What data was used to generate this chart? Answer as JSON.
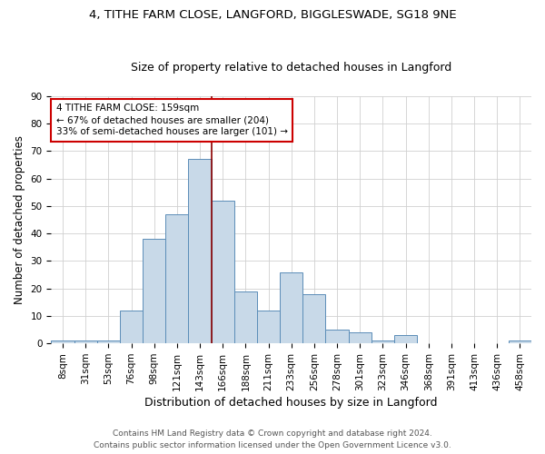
{
  "title1": "4, TITHE FARM CLOSE, LANGFORD, BIGGLESWADE, SG18 9NE",
  "title2": "Size of property relative to detached houses in Langford",
  "xlabel": "Distribution of detached houses by size in Langford",
  "ylabel": "Number of detached properties",
  "footnote": "Contains HM Land Registry data © Crown copyright and database right 2024.\nContains public sector information licensed under the Open Government Licence v3.0.",
  "bin_labels": [
    "8sqm",
    "31sqm",
    "53sqm",
    "76sqm",
    "98sqm",
    "121sqm",
    "143sqm",
    "166sqm",
    "188sqm",
    "211sqm",
    "233sqm",
    "256sqm",
    "278sqm",
    "301sqm",
    "323sqm",
    "346sqm",
    "368sqm",
    "391sqm",
    "413sqm",
    "436sqm",
    "458sqm"
  ],
  "bar_heights": [
    1,
    1,
    1,
    12,
    38,
    47,
    67,
    52,
    19,
    12,
    26,
    18,
    5,
    4,
    1,
    3,
    0,
    0,
    0,
    0,
    1
  ],
  "bar_color": "#c8d9e8",
  "bar_edge_color": "#5b8db8",
  "grid_color": "#d0d0d0",
  "vline_x": 6.5,
  "vline_color": "#8b0000",
  "annotation_text": "4 TITHE FARM CLOSE: 159sqm\n← 67% of detached houses are smaller (204)\n33% of semi-detached houses are larger (101) →",
  "annotation_box_color": "white",
  "annotation_box_edge_color": "#cc0000",
  "ylim": [
    0,
    90
  ],
  "yticks": [
    0,
    10,
    20,
    30,
    40,
    50,
    60,
    70,
    80,
    90
  ],
  "background_color": "white",
  "title1_fontsize": 9.5,
  "title2_fontsize": 9,
  "xlabel_fontsize": 9,
  "ylabel_fontsize": 8.5,
  "tick_fontsize": 7.5,
  "annotation_fontsize": 7.5,
  "footnote_fontsize": 6.5
}
